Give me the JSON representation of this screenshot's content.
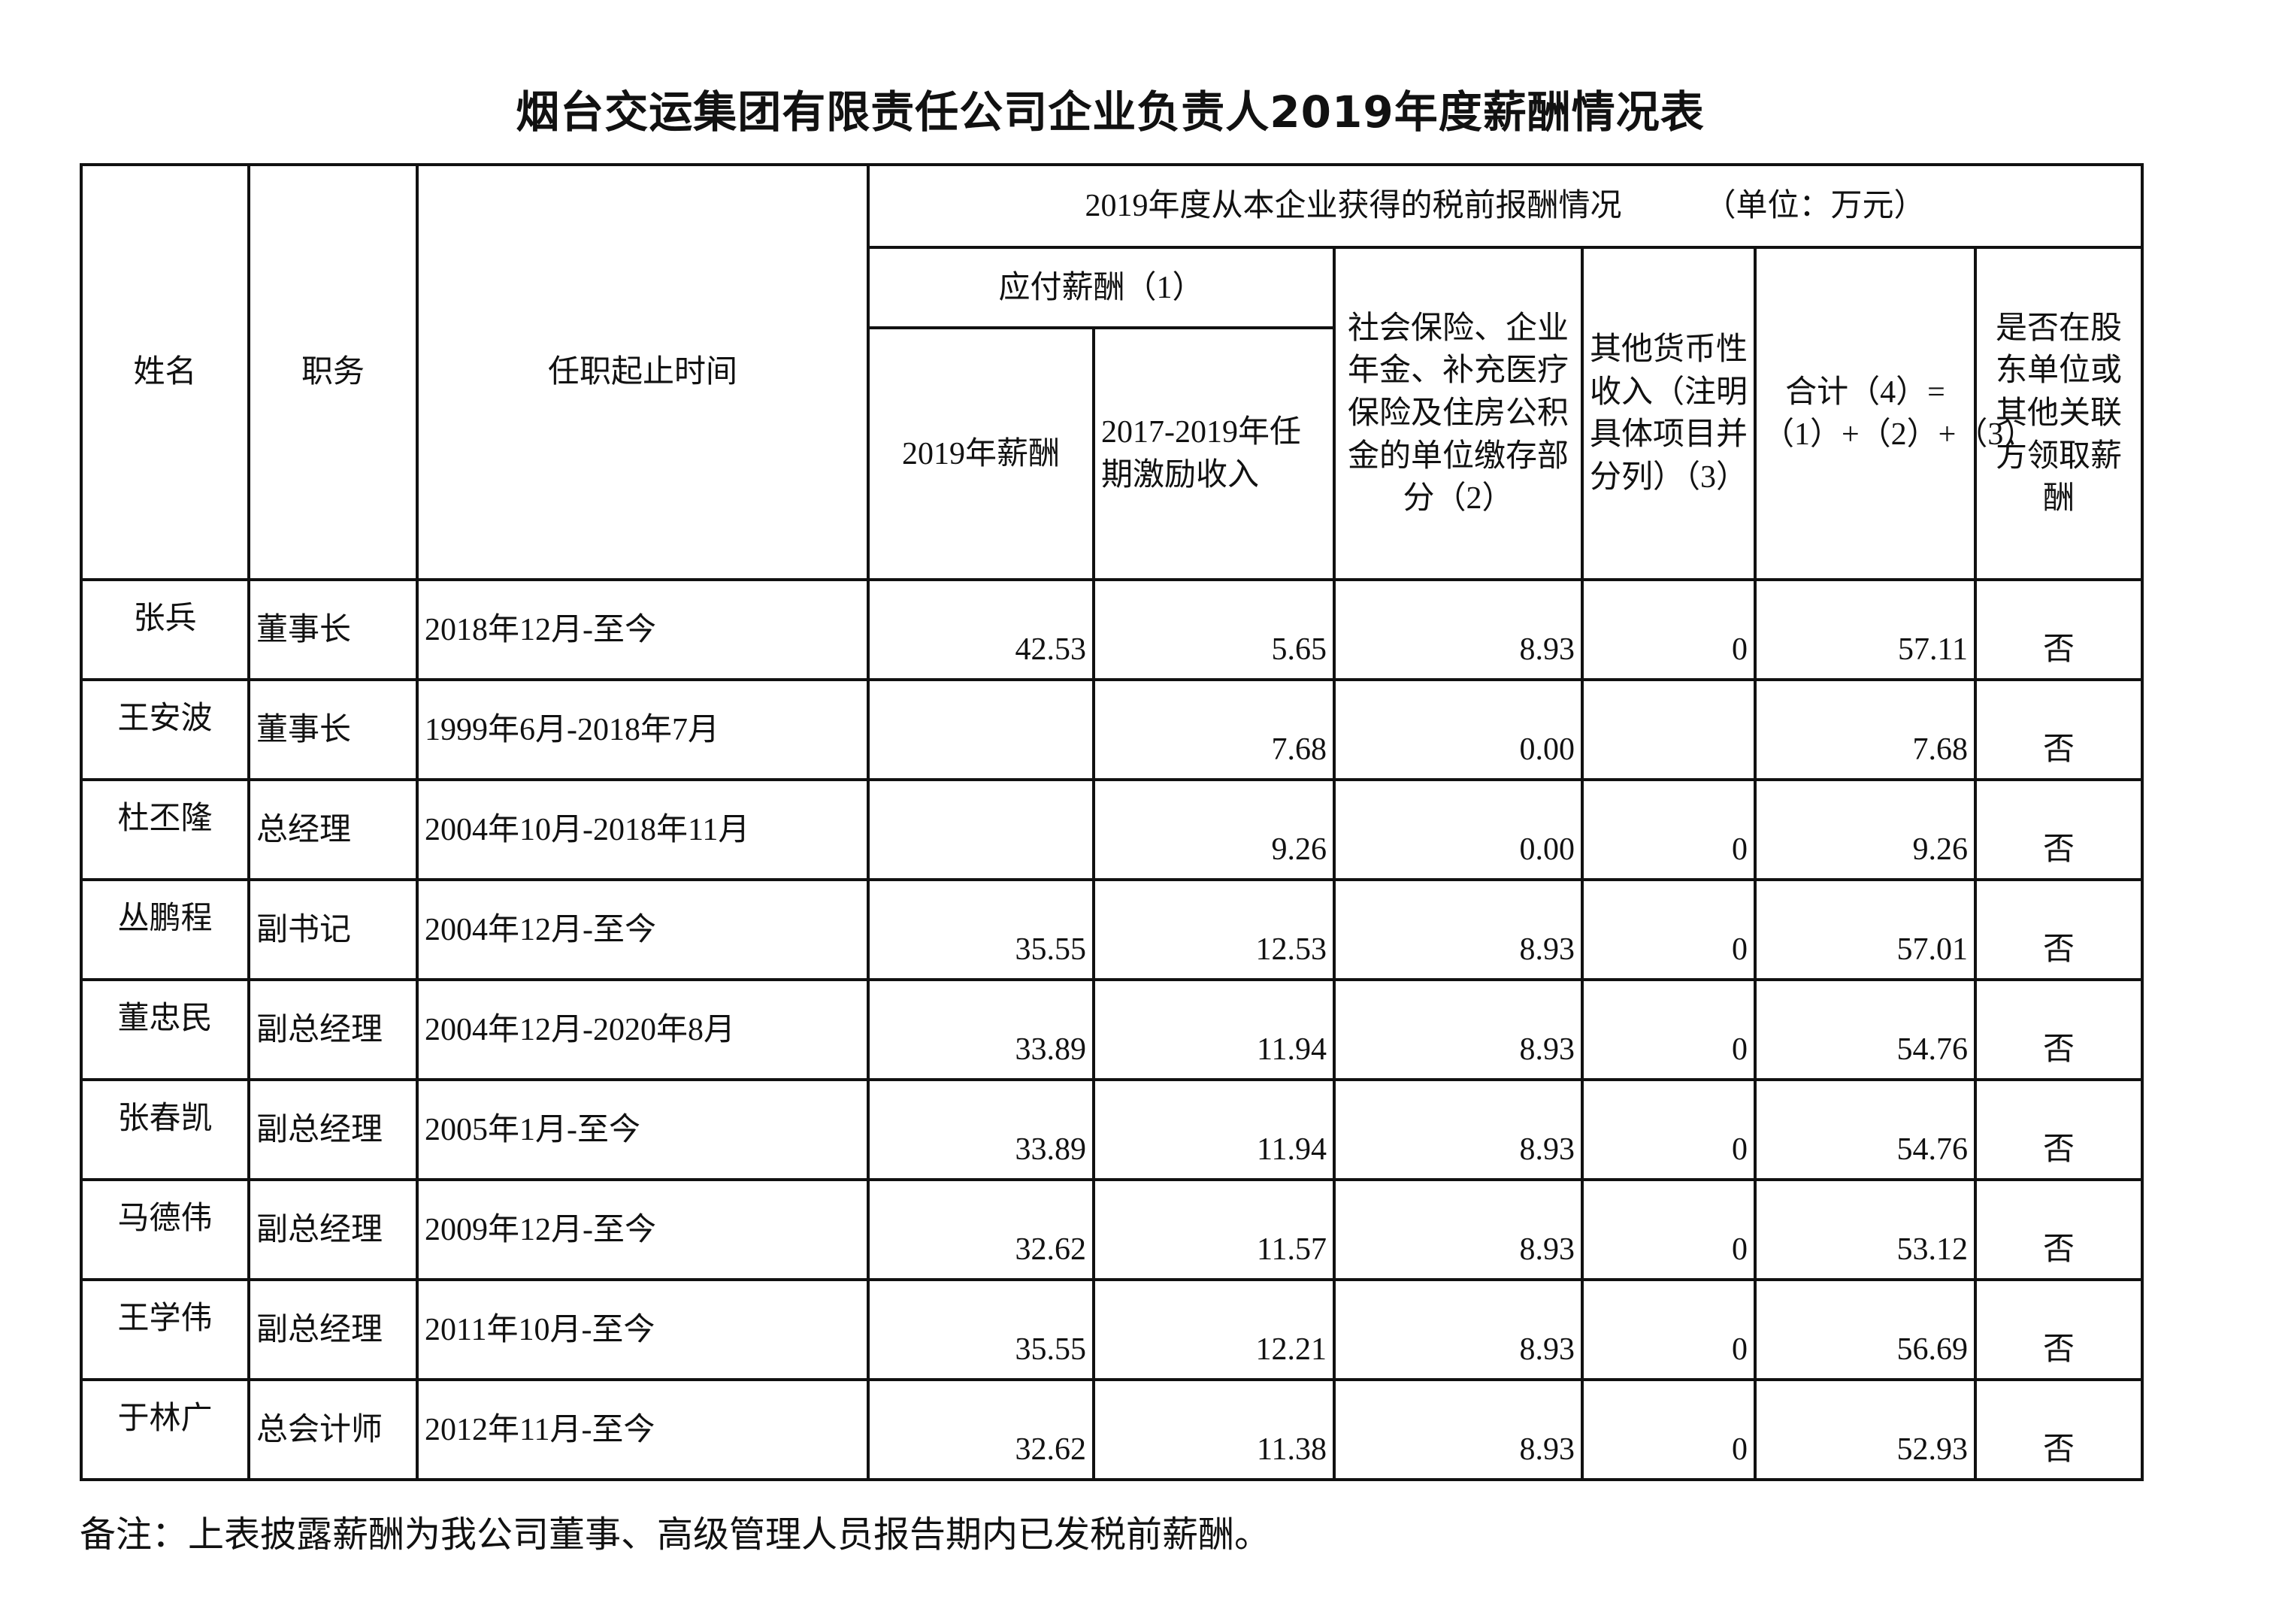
{
  "title": "烟台交运集团有限责任公司企业负责人2019年度薪酬情况表",
  "header": {
    "name": "姓名",
    "position": "职务",
    "term": "任职起止时间",
    "group": "2019年度从本企业获得的税前报酬情况",
    "unit": "（单位：万元）",
    "payable": "应付薪酬（1）",
    "salary_2019": "2019年薪酬",
    "incentive": "2017-2019年任期激励收入",
    "social": "社会保险、企业年金、补充医疗保险及住房公积金的单位缴存部分（2）",
    "other": "其他货币性收入（注明具体项目并分列）（3）",
    "total": "合计（4）=（1）+（2）+（3）",
    "related": "是否在股东单位或其他关联方领取薪酬"
  },
  "rows": [
    {
      "name": "张兵",
      "position": "董事长",
      "term": "2018年12月-至今",
      "salary": "42.53",
      "incentive": "5.65",
      "social": "8.93",
      "other": "0",
      "total": "57.11",
      "related": "否"
    },
    {
      "name": "王安波",
      "position": "董事长",
      "term": "1999年6月-2018年7月",
      "salary": "",
      "incentive": "7.68",
      "social": "0.00",
      "other": "",
      "total": "7.68",
      "related": "否"
    },
    {
      "name": "杜丕隆",
      "position": "总经理",
      "term": "2004年10月-2018年11月",
      "salary": "",
      "incentive": "9.26",
      "social": "0.00",
      "other": "0",
      "total": "9.26",
      "related": "否"
    },
    {
      "name": "丛鹏程",
      "position": "副书记",
      "term": "2004年12月-至今",
      "salary": "35.55",
      "incentive": "12.53",
      "social": "8.93",
      "other": "0",
      "total": "57.01",
      "related": "否"
    },
    {
      "name": "董忠民",
      "position": "副总经理",
      "term": "2004年12月-2020年8月",
      "salary": "33.89",
      "incentive": "11.94",
      "social": "8.93",
      "other": "0",
      "total": "54.76",
      "related": "否"
    },
    {
      "name": "张春凯",
      "position": "副总经理",
      "term": "2005年1月-至今",
      "salary": "33.89",
      "incentive": "11.94",
      "social": "8.93",
      "other": "0",
      "total": "54.76",
      "related": "否"
    },
    {
      "name": "马德伟",
      "position": "副总经理",
      "term": "2009年12月-至今",
      "salary": "32.62",
      "incentive": "11.57",
      "social": "8.93",
      "other": "0",
      "total": "53.12",
      "related": "否"
    },
    {
      "name": "王学伟",
      "position": "副总经理",
      "term": "2011年10月-至今",
      "salary": "35.55",
      "incentive": "12.21",
      "social": "8.93",
      "other": "0",
      "total": "56.69",
      "related": "否"
    },
    {
      "name": "于林广",
      "position": "总会计师",
      "term": "2012年11月-至今",
      "salary": "32.62",
      "incentive": "11.38",
      "social": "8.93",
      "other": "0",
      "total": "52.93",
      "related": "否"
    }
  ],
  "note": "备注：上表披露薪酬为我公司董事、高级管理人员报告期内已发税前薪酬。"
}
